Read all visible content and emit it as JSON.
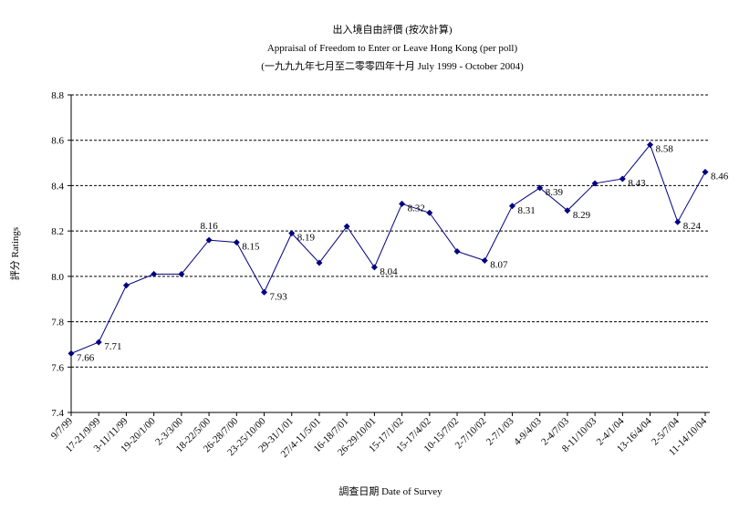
{
  "chart_data": {
    "type": "line",
    "title": "出入境自由評價 (按次計算)",
    "subtitle": "Appraisal of Freedom to Enter or Leave Hong Kong (per poll)",
    "subtitle2": "(一九九九年七月至二零零四年十月 July 1999 - October 2004)",
    "x_label": "調查日期 Date of Survey",
    "y_label": "評分 Ratings",
    "categories": [
      "9/7/99",
      "17-21/9/99",
      "3-11/11/99",
      "19-20/1/00",
      "2-3/3/00",
      "18-22/5/00",
      "26-28/7/00",
      "23-25/10/00",
      "29-31/1/01",
      "27/4-11/5/01",
      "16-18/7/01",
      "26-29/10/01",
      "15-17/1/02",
      "15-17/4/02",
      "10-15/7/02",
      "2-7/10/02",
      "2-7/1/03",
      "4-9/4/03",
      "2-4/7/03",
      "8-11/10/03",
      "2-4/1/04",
      "13-16/4/04",
      "2-5/7/04",
      "11-14/10/04"
    ],
    "series": [
      {
        "name": "Ratings",
        "color": "#000080",
        "values": [
          7.66,
          7.71,
          7.96,
          8.01,
          8.01,
          8.16,
          8.15,
          7.93,
          8.19,
          8.06,
          8.22,
          8.04,
          8.32,
          8.28,
          8.11,
          8.07,
          8.31,
          8.39,
          8.29,
          8.41,
          8.43,
          8.58,
          8.24,
          8.46
        ],
        "value_labels": [
          "7.66",
          "7.71",
          null,
          null,
          null,
          "8.16",
          "8.15",
          "7.93",
          "8.19",
          null,
          null,
          "8.04",
          "8.32",
          null,
          null,
          "8.07",
          "8.31",
          "8.39",
          "8.29",
          null,
          "8.43",
          "8.58",
          "8.24",
          "8.46"
        ]
      }
    ],
    "ylim": [
      7.4,
      8.8
    ],
    "yticks": [
      7.4,
      7.6,
      7.8,
      {
        "value": 8,
        "label": "8.0"
      },
      8.2,
      8.4,
      8.6,
      8.8
    ],
    "grid": true
  }
}
